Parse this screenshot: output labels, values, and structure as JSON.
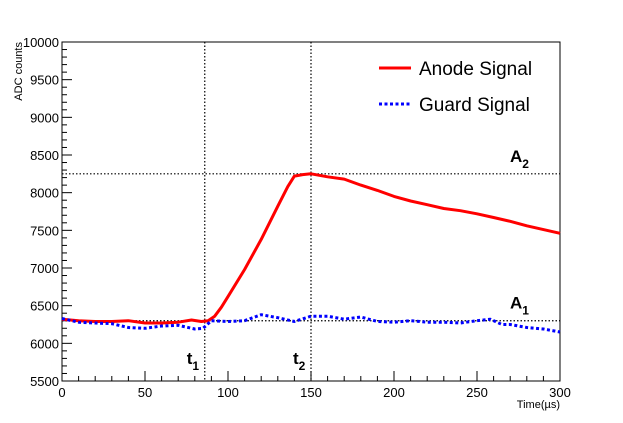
{
  "chart_data": {
    "type": "line",
    "xlabel": "Time(µs)",
    "ylabel": "ADC counts",
    "xlim": [
      0,
      300
    ],
    "ylim": [
      5500,
      10000
    ],
    "x_ticks": [
      0,
      50,
      100,
      150,
      200,
      250,
      300
    ],
    "y_ticks": [
      5500,
      6000,
      6500,
      7000,
      7500,
      8000,
      8500,
      9000,
      9500,
      10000
    ],
    "grid": false,
    "legend_position": "top-right",
    "series": [
      {
        "name": "Anode Signal",
        "color": "#ff0000",
        "style": "solid",
        "x": [
          0,
          10,
          20,
          30,
          40,
          50,
          60,
          70,
          78,
          84,
          88,
          92,
          96,
          100,
          110,
          120,
          130,
          136,
          140,
          145,
          150,
          155,
          160,
          170,
          180,
          190,
          200,
          210,
          220,
          230,
          240,
          250,
          260,
          270,
          280,
          290,
          300
        ],
        "y": [
          6320,
          6300,
          6290,
          6290,
          6300,
          6270,
          6270,
          6280,
          6310,
          6290,
          6300,
          6360,
          6480,
          6620,
          6980,
          7380,
          7820,
          8080,
          8220,
          8240,
          8250,
          8230,
          8210,
          8180,
          8100,
          8030,
          7950,
          7890,
          7840,
          7790,
          7760,
          7720,
          7670,
          7620,
          7560,
          7510,
          7460
        ]
      },
      {
        "name": "Guard Signal",
        "color": "#0000ff",
        "style": "dotted",
        "x": [
          0,
          10,
          20,
          30,
          40,
          50,
          60,
          70,
          80,
          85,
          90,
          100,
          110,
          120,
          130,
          140,
          150,
          160,
          170,
          180,
          190,
          200,
          210,
          220,
          230,
          240,
          250,
          258,
          265,
          270,
          280,
          290,
          300
        ],
        "y": [
          6330,
          6280,
          6270,
          6260,
          6210,
          6200,
          6230,
          6240,
          6190,
          6200,
          6300,
          6290,
          6300,
          6380,
          6340,
          6290,
          6360,
          6360,
          6320,
          6350,
          6290,
          6280,
          6300,
          6280,
          6280,
          6270,
          6300,
          6320,
          6250,
          6250,
          6210,
          6190,
          6150
        ]
      }
    ],
    "reference_lines": {
      "vertical": [
        {
          "x": 86,
          "label_main": "t",
          "label_sub": "1"
        },
        {
          "x": 150,
          "label_main": "t",
          "label_sub": "2"
        }
      ],
      "horizontal": [
        {
          "y": 8250,
          "label_main": "A",
          "label_sub": "2"
        },
        {
          "y": 6300,
          "label_main": "A",
          "label_sub": "1"
        }
      ]
    }
  }
}
